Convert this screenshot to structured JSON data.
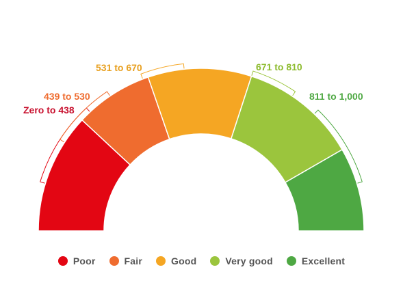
{
  "chart_data": {
    "type": "gauge",
    "title": "",
    "min": 0,
    "max": 1000,
    "segments": [
      {
        "category": "Poor",
        "range_label": "Zero to 438",
        "color": "#e30613",
        "label_color": "#c8102e"
      },
      {
        "category": "Fair",
        "range_label": "439 to 530",
        "color": "#ef6c2f",
        "label_color": "#ef6c2f"
      },
      {
        "category": "Good",
        "range_label": "531 to 670",
        "color": "#f5a623",
        "label_color": "#e8a020"
      },
      {
        "category": "Very good",
        "range_label": "671 to 810",
        "color": "#9bc53d",
        "label_color": "#8dbb2e"
      },
      {
        "category": "Excellent",
        "range_label": "811 to 1,000",
        "color": "#4ea843",
        "label_color": "#4ea843"
      }
    ],
    "legend": [
      "Poor",
      "Fair",
      "Good",
      "Very good",
      "Excellent"
    ],
    "legend_position": "bottom"
  }
}
